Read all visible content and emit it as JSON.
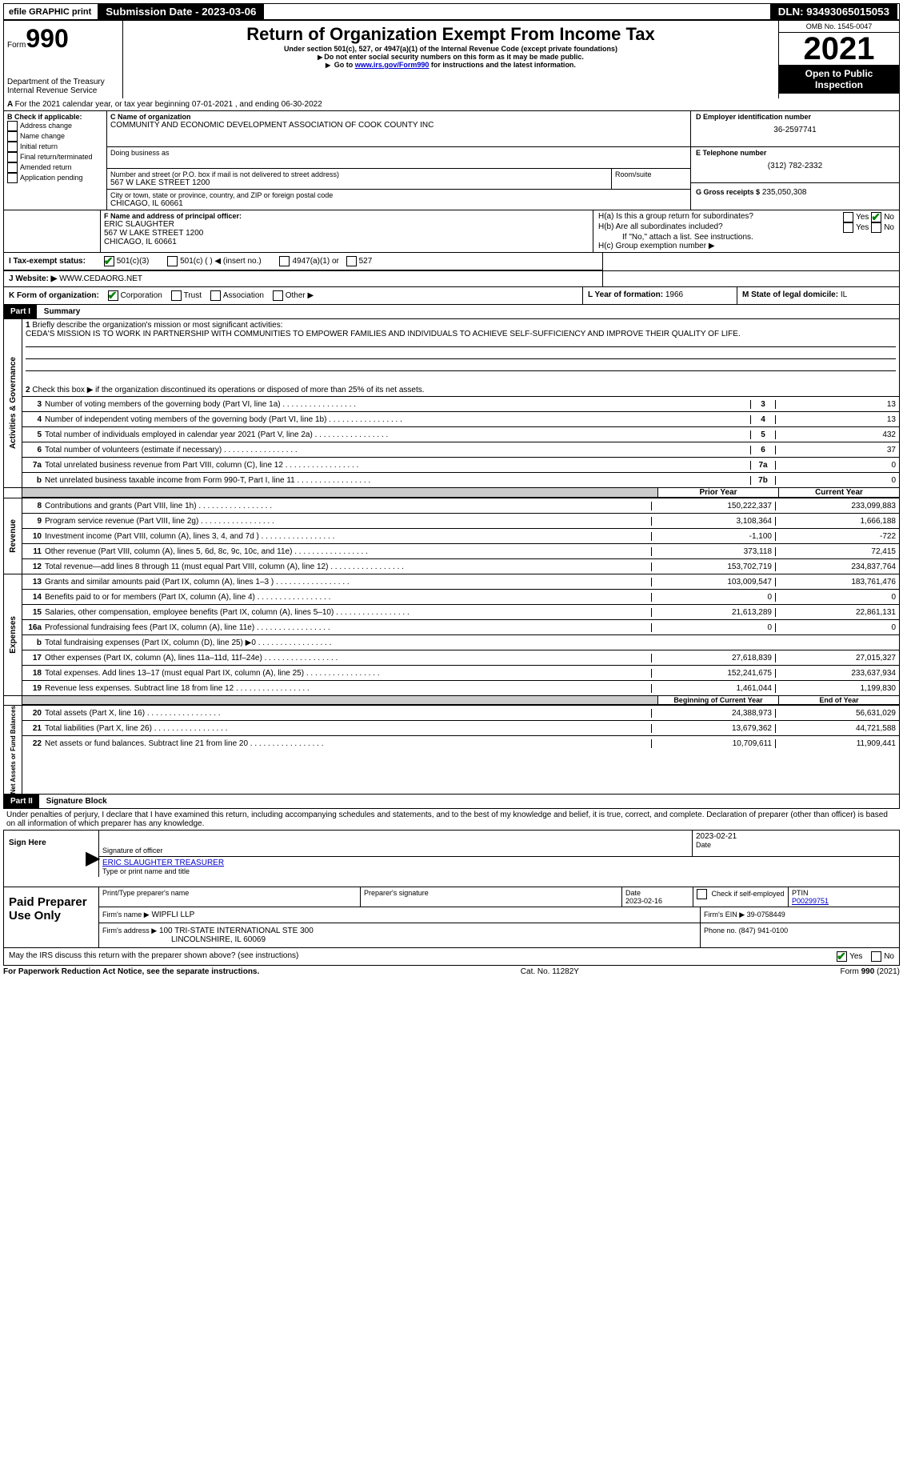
{
  "topbar": {
    "efile": "efile GRAPHIC print",
    "submission_label": "Submission Date - 2023-03-06",
    "dln_label": "DLN: 93493065015053"
  },
  "header": {
    "form_word": "Form",
    "form_number": "990",
    "title": "Return of Organization Exempt From Income Tax",
    "subtitle": "Under section 501(c), 527, or 4947(a)(1) of the Internal Revenue Code (except private foundations)",
    "note1": "Do not enter social security numbers on this form as it may be made public.",
    "note2_prefix": "Go to ",
    "note2_link": "www.irs.gov/Form990",
    "note2_suffix": " for instructions and the latest information.",
    "dept": "Department of the Treasury\nInternal Revenue Service",
    "omb": "OMB No. 1545-0047",
    "year": "2021",
    "inspection": "Open to Public Inspection"
  },
  "boxA": {
    "line": "For the 2021 calendar year, or tax year beginning 07-01-2021   , and ending 06-30-2022"
  },
  "boxB": {
    "label": "B Check if applicable:",
    "items": [
      "Address change",
      "Name change",
      "Initial return",
      "Final return/terminated",
      "Amended return",
      "Application pending"
    ]
  },
  "boxC": {
    "name_label": "C Name of organization",
    "name": "COMMUNITY AND ECONOMIC DEVELOPMENT ASSOCIATION OF COOK COUNTY INC",
    "dba_label": "Doing business as",
    "addr_label": "Number and street (or P.O. box if mail is not delivered to street address)",
    "room_label": "Room/suite",
    "addr": "567 W LAKE STREET 1200",
    "city_label": "City or town, state or province, country, and ZIP or foreign postal code",
    "city": "CHICAGO, IL  60661"
  },
  "boxD": {
    "label": "D Employer identification number",
    "value": "36-2597741"
  },
  "boxE": {
    "label": "E Telephone number",
    "value": "(312) 782-2332"
  },
  "boxG": {
    "label": "G Gross receipts $",
    "value": "235,050,308"
  },
  "boxF": {
    "label": "F  Name and address of principal officer:",
    "name": "ERIC SLAUGHTER",
    "addr1": "567 W LAKE STREET 1200",
    "addr2": "CHICAGO, IL  60661"
  },
  "boxH": {
    "a": "H(a)  Is this a group return for subordinates?",
    "b": "H(b)  Are all subordinates included?",
    "b_note": "If \"No,\" attach a list. See instructions.",
    "c": "H(c)  Group exemption number ▶",
    "yes": "Yes",
    "no": "No"
  },
  "boxI": {
    "label": "I   Tax-exempt status:",
    "opt1": "501(c)(3)",
    "opt2": "501(c) (  ) ◀ (insert no.)",
    "opt3": "4947(a)(1) or",
    "opt4": "527"
  },
  "boxJ": {
    "label": "J   Website: ▶",
    "value": "WWW.CEDAORG.NET"
  },
  "boxK": {
    "label": "K Form of organization:",
    "opts": [
      "Corporation",
      "Trust",
      "Association",
      "Other ▶"
    ]
  },
  "boxL": {
    "label": "L Year of formation:",
    "value": "1966"
  },
  "boxM": {
    "label": "M State of legal domicile:",
    "value": "IL"
  },
  "part1": {
    "header": "Part I",
    "title": "Summary",
    "q1_label": "Briefly describe the organization's mission or most significant activities:",
    "q1_text": "CEDA'S MISSION IS TO WORK IN PARTNERSHIP WITH COMMUNITIES TO EMPOWER FAMILIES AND INDIVIDUALS TO ACHIEVE SELF-SUFFICIENCY AND IMPROVE THEIR QUALITY OF LIFE.",
    "q2": "Check this box ▶     if the organization discontinued its operations or disposed of more than 25% of its net assets.",
    "lines_ag": [
      {
        "n": "3",
        "label": "Number of voting members of the governing body (Part VI, line 1a)",
        "box": "3",
        "val": "13"
      },
      {
        "n": "4",
        "label": "Number of independent voting members of the governing body (Part VI, line 1b)",
        "box": "4",
        "val": "13"
      },
      {
        "n": "5",
        "label": "Total number of individuals employed in calendar year 2021 (Part V, line 2a)",
        "box": "5",
        "val": "432"
      },
      {
        "n": "6",
        "label": "Total number of volunteers (estimate if necessary)",
        "box": "6",
        "val": "37"
      },
      {
        "n": "7a",
        "label": "Total unrelated business revenue from Part VIII, column (C), line 12",
        "box": "7a",
        "val": "0"
      },
      {
        "n": "b",
        "label": "Net unrelated business taxable income from Form 990-T, Part I, line 11",
        "box": "7b",
        "val": "0"
      }
    ],
    "prior_hdr": "Prior Year",
    "current_hdr": "Current Year",
    "revenue": [
      {
        "n": "8",
        "label": "Contributions and grants (Part VIII, line 1h)",
        "prior": "150,222,337",
        "curr": "233,099,883"
      },
      {
        "n": "9",
        "label": "Program service revenue (Part VIII, line 2g)",
        "prior": "3,108,364",
        "curr": "1,666,188"
      },
      {
        "n": "10",
        "label": "Investment income (Part VIII, column (A), lines 3, 4, and 7d )",
        "prior": "-1,100",
        "curr": "-722"
      },
      {
        "n": "11",
        "label": "Other revenue (Part VIII, column (A), lines 5, 6d, 8c, 9c, 10c, and 11e)",
        "prior": "373,118",
        "curr": "72,415"
      },
      {
        "n": "12",
        "label": "Total revenue—add lines 8 through 11 (must equal Part VIII, column (A), line 12)",
        "prior": "153,702,719",
        "curr": "234,837,764"
      }
    ],
    "expenses": [
      {
        "n": "13",
        "label": "Grants and similar amounts paid (Part IX, column (A), lines 1–3 )",
        "prior": "103,009,547",
        "curr": "183,761,476"
      },
      {
        "n": "14",
        "label": "Benefits paid to or for members (Part IX, column (A), line 4)",
        "prior": "0",
        "curr": "0"
      },
      {
        "n": "15",
        "label": "Salaries, other compensation, employee benefits (Part IX, column (A), lines 5–10)",
        "prior": "21,613,289",
        "curr": "22,861,131"
      },
      {
        "n": "16a",
        "label": "Professional fundraising fees (Part IX, column (A), line 11e)",
        "prior": "0",
        "curr": "0"
      },
      {
        "n": "b",
        "label": "Total fundraising expenses (Part IX, column (D), line 25) ▶0",
        "prior": "__grey__",
        "curr": "__grey__"
      },
      {
        "n": "17",
        "label": "Other expenses (Part IX, column (A), lines 11a–11d, 11f–24e)",
        "prior": "27,618,839",
        "curr": "27,015,327"
      },
      {
        "n": "18",
        "label": "Total expenses. Add lines 13–17 (must equal Part IX, column (A), line 25)",
        "prior": "152,241,675",
        "curr": "233,637,934"
      },
      {
        "n": "19",
        "label": "Revenue less expenses. Subtract line 18 from line 12",
        "prior": "1,461,044",
        "curr": "1,199,830"
      }
    ],
    "begin_hdr": "Beginning of Current Year",
    "end_hdr": "End of Year",
    "netassets": [
      {
        "n": "20",
        "label": "Total assets (Part X, line 16)",
        "prior": "24,388,973",
        "curr": "56,631,029"
      },
      {
        "n": "21",
        "label": "Total liabilities (Part X, line 26)",
        "prior": "13,679,362",
        "curr": "44,721,588"
      },
      {
        "n": "22",
        "label": "Net assets or fund balances. Subtract line 21 from line 20",
        "prior": "10,709,611",
        "curr": "11,909,441"
      }
    ],
    "vlabels": {
      "ag": "Activities & Governance",
      "rev": "Revenue",
      "exp": "Expenses",
      "na": "Net Assets or Fund Balances"
    }
  },
  "part2": {
    "header": "Part II",
    "title": "Signature Block",
    "declaration": "Under penalties of perjury, I declare that I have examined this return, including accompanying schedules and statements, and to the best of my knowledge and belief, it is true, correct, and complete. Declaration of preparer (other than officer) is based on all information of which preparer has any knowledge.",
    "sign_here": "Sign Here",
    "sig_officer": "Signature of officer",
    "sig_date": "2023-02-21",
    "date_label": "Date",
    "officer_name": "ERIC SLAUGHTER  TREASURER",
    "type_print": "Type or print name and title",
    "paid": "Paid Preparer Use Only",
    "prep_name_label": "Print/Type preparer's name",
    "prep_sig_label": "Preparer's signature",
    "prep_date_label": "Date",
    "prep_date": "2023-02-16",
    "check_self": "Check       if self-employed",
    "ptin_label": "PTIN",
    "ptin": "P00299751",
    "firm_name_label": "Firm's name    ▶",
    "firm_name": "WIPFLI LLP",
    "firm_ein_label": "Firm's EIN ▶",
    "firm_ein": "39-0758449",
    "firm_addr_label": "Firm's address ▶",
    "firm_addr": "100 TRI-STATE INTERNATIONAL STE 300",
    "firm_city": "LINCOLNSHIRE, IL  60069",
    "firm_phone_label": "Phone no.",
    "firm_phone": "(847) 941-0100",
    "discuss": "May the IRS discuss this return with the preparer shown above? (see instructions)"
  },
  "footer": {
    "left": "For Paperwork Reduction Act Notice, see the separate instructions.",
    "center": "Cat. No. 11282Y",
    "right": "Form 990 (2021)"
  }
}
